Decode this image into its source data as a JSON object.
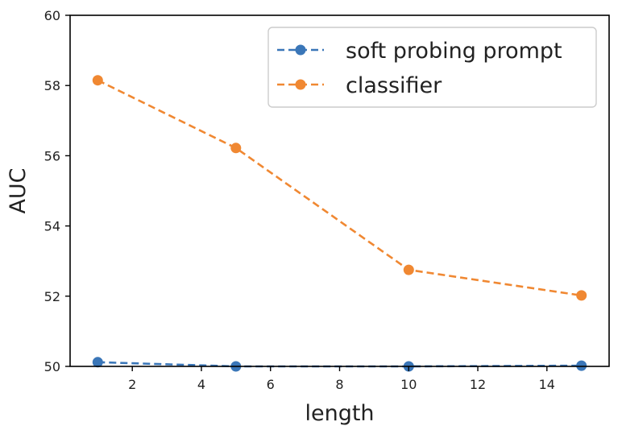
{
  "chart_data": {
    "type": "line",
    "xlabel": "length",
    "ylabel": "AUC",
    "xlim": [
      0.2,
      15.8
    ],
    "ylim": [
      50,
      60
    ],
    "xticks": [
      2,
      4,
      6,
      8,
      10,
      12,
      14
    ],
    "yticks": [
      50,
      52,
      54,
      56,
      58,
      60
    ],
    "grid": false,
    "legend_position": "top-right",
    "line_style": "dashed",
    "marker": "circle",
    "series": [
      {
        "name": "soft probing prompt",
        "color": "#3a76b8",
        "points": [
          [
            1,
            50.12
          ],
          [
            5,
            50.0
          ],
          [
            10,
            50.0
          ],
          [
            15,
            50.02
          ]
        ]
      },
      {
        "name": "classifier",
        "color": "#f08832",
        "points": [
          [
            1,
            58.15
          ],
          [
            5,
            56.22
          ],
          [
            10,
            52.75
          ],
          [
            15,
            52.02
          ]
        ]
      }
    ]
  }
}
